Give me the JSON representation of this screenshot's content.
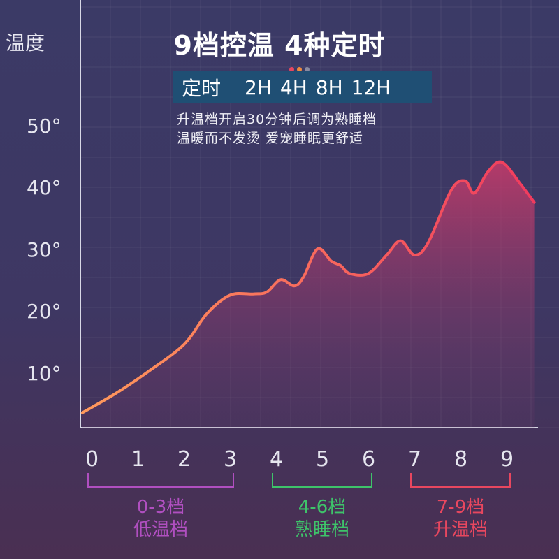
{
  "title": "9档控温 4种定时",
  "timer": {
    "label": "定时",
    "options": [
      "2H",
      "4H",
      "8H",
      "12H"
    ],
    "dot_colors": [
      "#e8475f",
      "#f08a3c",
      "#8a8aa0"
    ]
  },
  "description": [
    "升温档开启30分钟后调为熟睡档",
    "温暖而不发烫 爱宠睡眠更舒适"
  ],
  "colors": {
    "line_start": "#ff9a5c",
    "line_end": "#f03b5e",
    "low": "#b04fc0",
    "sleep": "#3ec46a",
    "heat": "#e8475f"
  },
  "chart_data": {
    "type": "area",
    "ylabel": "温度",
    "y_ticks": [
      "10°",
      "20°",
      "30°",
      "40°",
      "50°"
    ],
    "y_tick_values": [
      10,
      20,
      30,
      40,
      50
    ],
    "x_ticks": [
      "0",
      "1",
      "2",
      "3",
      "4",
      "5",
      "6",
      "7",
      "8",
      "9"
    ],
    "grid": true,
    "points": [
      {
        "x": -0.2,
        "y": 4
      },
      {
        "x": 0.5,
        "y": 7
      },
      {
        "x": 1.2,
        "y": 10.5
      },
      {
        "x": 2.0,
        "y": 15
      },
      {
        "x": 2.5,
        "y": 20
      },
      {
        "x": 3.0,
        "y": 23
      },
      {
        "x": 3.5,
        "y": 23.2
      },
      {
        "x": 3.8,
        "y": 23.5
      },
      {
        "x": 4.1,
        "y": 25.5
      },
      {
        "x": 4.4,
        "y": 24.5
      },
      {
        "x": 4.6,
        "y": 26
      },
      {
        "x": 4.9,
        "y": 30.5
      },
      {
        "x": 5.2,
        "y": 28.5
      },
      {
        "x": 5.4,
        "y": 27.8
      },
      {
        "x": 5.6,
        "y": 26.5
      },
      {
        "x": 6.0,
        "y": 26.5
      },
      {
        "x": 6.4,
        "y": 29.5
      },
      {
        "x": 6.7,
        "y": 31.8
      },
      {
        "x": 7.0,
        "y": 29.5
      },
      {
        "x": 7.3,
        "y": 31.5
      },
      {
        "x": 7.8,
        "y": 40
      },
      {
        "x": 8.1,
        "y": 41.5
      },
      {
        "x": 8.3,
        "y": 39.5
      },
      {
        "x": 8.6,
        "y": 43
      },
      {
        "x": 8.9,
        "y": 44.5
      },
      {
        "x": 9.3,
        "y": 41
      },
      {
        "x": 9.6,
        "y": 38
      }
    ],
    "ranges": [
      {
        "from": 0,
        "to": 3,
        "label_top": "0-3档",
        "label_bottom": "低温档",
        "color": "#b04fc0"
      },
      {
        "from": 4,
        "to": 6,
        "label_top": "4-6档",
        "label_bottom": "熟睡档",
        "color": "#3ec46a"
      },
      {
        "from": 7,
        "to": 9,
        "label_top": "7-9档",
        "label_bottom": "升温档",
        "color": "#e8475f"
      }
    ]
  }
}
